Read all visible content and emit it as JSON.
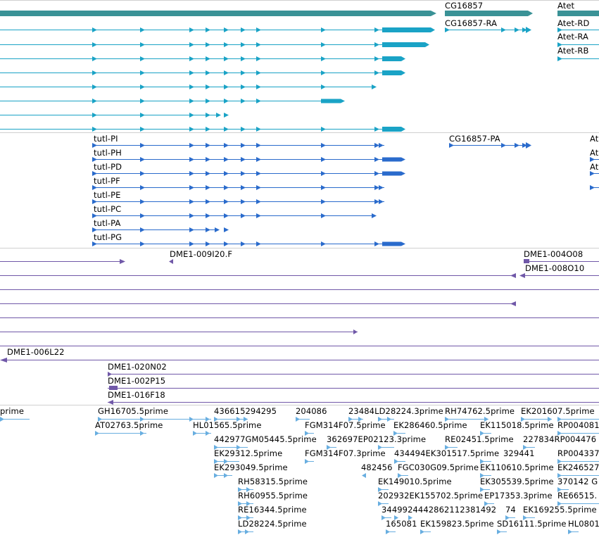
{
  "colors": {
    "gene": "#3a9296",
    "transcript": "#1aa3c6",
    "cds": "#2a6bcc",
    "clone": "#7058a8",
    "est": "#68aee0",
    "separator": "#cfcfcf"
  },
  "icons": {
    "forward_arrow": "triangle-right",
    "reverse_arrow": "triangle-left"
  },
  "genes": [
    "CG16857",
    "Atet"
  ],
  "transcripts": [
    "CG16857-RA",
    "Atet-RD",
    "Atet-RA",
    "Atet-RB"
  ],
  "cds": [
    "tutl-PI",
    "tutl-PH",
    "tutl-PD",
    "tutl-PF",
    "tutl-PE",
    "tutl-PC",
    "tutl-PA",
    "tutl-PG",
    "CG16857-PA",
    "At",
    "At",
    "At"
  ],
  "clones": [
    "DME1-009I20.F",
    "DME1-004O08",
    "DME1-008O10",
    "DME1-006L22",
    "DME1-020N02",
    "DME1-002P15",
    "DME1-016F18"
  ],
  "est_labels": [
    "prime",
    "GH16705.5prime",
    "436615294295",
    "204086",
    "23484LD28224.3prime",
    "RH74762.5prime",
    "EK201607.5prime",
    "AT02763.5prime",
    "HL01565.5prime",
    "FGM314F07.5prime",
    "EK286460.5prime",
    "EK115018.5prime",
    "RP004081",
    "442977GM05445.5prime",
    "362697EP02123.3prime",
    "RE02451.5prime",
    "227834RP004476",
    "EK29312.5prime",
    "FGM314F07.3prime",
    "434494EK301517.5prime",
    "329441",
    "RP004337",
    "EK293049.5prime",
    "482456",
    "FGC030G09.5prime",
    "EK110610.5prime",
    "EK246527",
    "RH58315.5prime",
    "EK149010.5prime",
    "EK305539.5prime",
    "370142 G",
    "RH60955.5prime",
    "202932EK155702.5prime",
    "EP17353.3prime",
    "RE66515.",
    "RE16344.5prime",
    "3449924442862112381492",
    "74",
    "EK169255.5prime",
    "LD28224.5prime",
    "165081",
    "EK159823.5prime",
    "SD16111.5prime",
    "HL0801"
  ]
}
